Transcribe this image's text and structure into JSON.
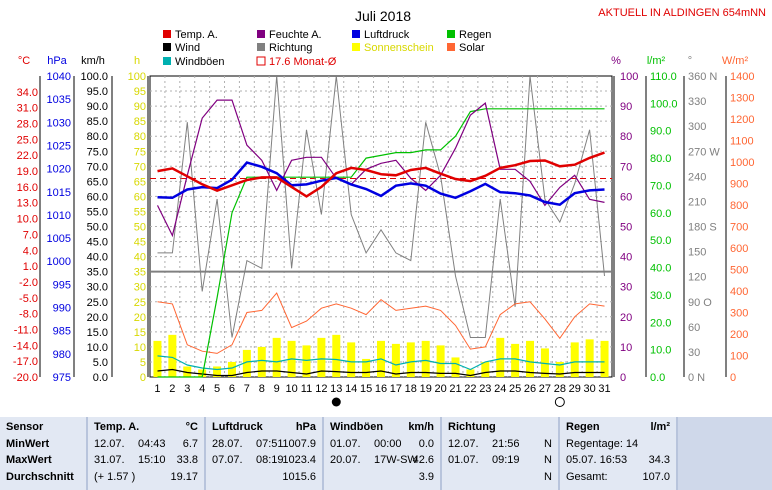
{
  "header": {
    "title": "Juli 2018",
    "station": "AKTUELL IN ALDINGEN 654mNN"
  },
  "legend": [
    {
      "label": "Temp. A.",
      "color": "#e00000",
      "style": "box"
    },
    {
      "label": "Feuchte A.",
      "color": "#800080",
      "style": "box"
    },
    {
      "label": "Luftdruck",
      "color": "#0000e0",
      "style": "box"
    },
    {
      "label": "Regen",
      "color": "#00c000",
      "style": "box"
    },
    {
      "label": "Wind",
      "color": "#000000",
      "style": "box"
    },
    {
      "label": "Richtung",
      "color": "#808080",
      "style": "box"
    },
    {
      "label": "Sonnenschein",
      "color": "#ffff00",
      "style": "box"
    },
    {
      "label": "Solar",
      "color": "#ff6633",
      "style": "box"
    },
    {
      "label": "Windböen",
      "color": "#00b0b0",
      "style": "box"
    },
    {
      "label": "17.6 Monat-Ø",
      "color": "#e00000",
      "style": "outline"
    }
  ],
  "axes": {
    "left_units": [
      "°C",
      "hPa",
      "km/h",
      "h"
    ],
    "right_units": [
      "%",
      "l/m²",
      "°",
      "W/m²"
    ],
    "temp_ticks": [
      "34.0",
      "31.0",
      "28.0",
      "25.0",
      "22.0",
      "19.0",
      "16.0",
      "13.0",
      "10.0",
      "7.0",
      "4.0",
      "1.0",
      "-2.0",
      "-5.0",
      "-8.0",
      "-11.0",
      "-14.0",
      "-17.0",
      "-20.0"
    ],
    "press_ticks": [
      "1040",
      "1035",
      "1030",
      "1025",
      "1020",
      "1015",
      "1010",
      "1005",
      "1000",
      "995",
      "990",
      "985",
      "980",
      "975"
    ],
    "wind_ticks": [
      "100.0",
      "95.0",
      "90.0",
      "85.0",
      "80.0",
      "75.0",
      "70.0",
      "65.0",
      "60.0",
      "55.0",
      "50.0",
      "45.0",
      "40.0",
      "35.0",
      "30.0",
      "25.0",
      "20.0",
      "15.0",
      "10.0",
      "5.0",
      "0.0"
    ],
    "sun_ticks": [
      "100",
      "95",
      "90",
      "85",
      "80",
      "75",
      "70",
      "65",
      "60",
      "55",
      "50",
      "45",
      "40",
      "35",
      "30",
      "25",
      "20",
      "15",
      "10",
      "5",
      "0"
    ],
    "hum_ticks": [
      "100",
      "90",
      "80",
      "70",
      "60",
      "50",
      "40",
      "30",
      "20",
      "10",
      "0"
    ],
    "rain_ticks": [
      "110.0",
      "100.0",
      "90.0",
      "80.0",
      "70.0",
      "60.0",
      "50.0",
      "40.0",
      "30.0",
      "20.0",
      "10.0",
      "0.0"
    ],
    "dir_ticks": [
      "360 N",
      "330",
      "300",
      "270 W",
      "240",
      "210",
      "180 S",
      "150",
      "120",
      "90 O",
      "60",
      "30",
      "0 N"
    ],
    "solar_ticks": [
      "1400",
      "1300",
      "1200",
      "1100",
      "1000",
      "900",
      "800",
      "700",
      "600",
      "500",
      "400",
      "300",
      "200",
      "100",
      "0"
    ],
    "x_ticks": [
      "1",
      "2",
      "3",
      "4",
      "5",
      "6",
      "7",
      "8",
      "9",
      "10",
      "11",
      "12",
      "13",
      "14",
      "15",
      "16",
      "17",
      "18",
      "19",
      "20",
      "21",
      "22",
      "23",
      "24",
      "25",
      "26",
      "27",
      "28",
      "29",
      "30",
      "31"
    ]
  },
  "chart_data": {
    "type": "line",
    "x": [
      1,
      2,
      3,
      4,
      5,
      6,
      7,
      8,
      9,
      10,
      11,
      12,
      13,
      14,
      15,
      16,
      17,
      18,
      19,
      20,
      21,
      22,
      23,
      24,
      25,
      26,
      27,
      28,
      29,
      30,
      31
    ],
    "month_avg_temp": 17.6,
    "series": [
      {
        "name": "Temp. A.",
        "unit": "°C",
        "color": "#e00000",
        "values": [
          19.0,
          19.5,
          18.0,
          16.5,
          15.3,
          16.3,
          17.3,
          17.8,
          17.8,
          16.0,
          14.2,
          16.0,
          18.6,
          19.6,
          19.2,
          18.4,
          18.2,
          19.2,
          19.6,
          18.5,
          17.5,
          17.1,
          18.1,
          19.6,
          20.1,
          20.9,
          21.0,
          19.9,
          20.2,
          21.5,
          22.5
        ]
      },
      {
        "name": "Feuchte A.",
        "unit": "%",
        "color": "#800080",
        "values": [
          57,
          47,
          67,
          86,
          92,
          92,
          77,
          72,
          62,
          72,
          73,
          73,
          66,
          64,
          69,
          71,
          72,
          66,
          62,
          67,
          76,
          87,
          91,
          69,
          69,
          65,
          57,
          63,
          67,
          59,
          58
        ]
      },
      {
        "name": "Luftdruck",
        "unit": "hPa",
        "color": "#0000e0",
        "values": [
          1013.8,
          1013.7,
          1015.5,
          1016.0,
          1015.8,
          1017.6,
          1021.3,
          1020.4,
          1019.0,
          1016.4,
          1016.6,
          1017.4,
          1018.0,
          1016.6,
          1015.6,
          1014.1,
          1016.3,
          1016.8,
          1016.3,
          1014.6,
          1013.7,
          1015.1,
          1016.7,
          1014.9,
          1014.7,
          1014.2,
          1012.8,
          1012.2,
          1014.7,
          1015.3,
          1015.5
        ]
      },
      {
        "name": "Regen",
        "unit": "l/m²",
        "color": "#00c000",
        "values": [
          0,
          0,
          0,
          0,
          29,
          60,
          73,
          73,
          73,
          73,
          73,
          73,
          73,
          73,
          80,
          81,
          82,
          82,
          83,
          83,
          88,
          97,
          98,
          98,
          98,
          98,
          98,
          98,
          98,
          98,
          98
        ]
      },
      {
        "name": "Wind",
        "unit": "km/h",
        "color": "#000000",
        "values": [
          2.0,
          2.5,
          1.5,
          1.0,
          0.5,
          0.5,
          1.5,
          2.0,
          2.0,
          1.5,
          1.0,
          2.0,
          1.8,
          1.5,
          1.5,
          2.0,
          1.0,
          1.5,
          1.5,
          1.2,
          1.2,
          0.5,
          1.5,
          2.0,
          2.0,
          1.5,
          1.2,
          1.0,
          1.5,
          1.5,
          1.5
        ]
      },
      {
        "name": "Windböen",
        "unit": "km/h",
        "color": "#00b0b0",
        "values": [
          7.0,
          6.5,
          4.0,
          3.0,
          2.5,
          3.0,
          5.0,
          5.5,
          5.0,
          6.0,
          5.5,
          6.0,
          5.8,
          5.0,
          5.0,
          6.0,
          4.0,
          5.0,
          5.5,
          4.5,
          4.5,
          2.5,
          5.0,
          6.0,
          6.0,
          5.0,
          4.5,
          4.0,
          5.0,
          5.0,
          5.0
        ]
      },
      {
        "name": "Richtung",
        "unit": "°",
        "color": "#808080",
        "values": [
          130,
          130,
          300,
          80,
          200,
          20,
          120,
          110,
          360,
          110,
          290,
          180,
          360,
          180,
          130,
          160,
          130,
          120,
          300,
          230,
          100,
          20,
          20,
          200,
          60,
          360,
          200,
          170,
          220,
          290,
          100
        ]
      },
      {
        "name": "Sonnenschein",
        "unit": "h",
        "color": "#ffff00",
        "values": [
          12.0,
          14.0,
          3.5,
          2.5,
          3.5,
          5.0,
          9.0,
          10.0,
          13.0,
          12.0,
          10.5,
          13.0,
          14.0,
          11.5,
          6.0,
          12.0,
          11.0,
          11.5,
          12.0,
          10.5,
          6.5,
          2.5,
          5.0,
          13.0,
          11.0,
          12.0,
          9.5,
          5.0,
          11.5,
          12.5,
          12.0
        ]
      },
      {
        "name": "Solar",
        "unit": "W/m²",
        "color": "#ff6633",
        "values": [
          350,
          340,
          150,
          120,
          110,
          150,
          300,
          310,
          390,
          230,
          260,
          320,
          340,
          320,
          290,
          360,
          310,
          320,
          330,
          310,
          240,
          130,
          140,
          290,
          340,
          350,
          270,
          180,
          280,
          340,
          330
        ]
      }
    ]
  },
  "markers": {
    "new_moon_day": 13,
    "full_moon_day": 28
  },
  "table": {
    "row_labels": [
      "Sensor",
      "MinWert",
      "MaxWert",
      "Durchschnitt"
    ],
    "columns": [
      {
        "title": "Temp. A.",
        "unit": "°C",
        "rows": [
          [
            "12.07.",
            "04:43",
            "6.7"
          ],
          [
            "31.07.",
            "15:10",
            "33.8"
          ],
          [
            "(+ 1.57 )",
            "",
            "19.17"
          ]
        ]
      },
      {
        "title": "Luftdruck",
        "unit": "hPa",
        "rows": [
          [
            "28.07.",
            "07:51",
            "1007.9"
          ],
          [
            "07.07.",
            "08:19",
            "1023.4"
          ],
          [
            "",
            "",
            "1015.6"
          ]
        ]
      },
      {
        "title": "Windböen",
        "unit": "km/h",
        "rows": [
          [
            "01.07.",
            "00:00",
            "0.0"
          ],
          [
            "20.07.",
            "17W-SW",
            "42.6"
          ],
          [
            "",
            "",
            "3.9"
          ]
        ]
      },
      {
        "title": "Richtung",
        "unit": "",
        "rows": [
          [
            "12.07.",
            "21:56",
            "N"
          ],
          [
            "01.07.",
            "09:19",
            "N"
          ],
          [
            "",
            "",
            "N"
          ]
        ]
      },
      {
        "title": "Regen",
        "unit": "l/m²",
        "rows": [
          [
            "Regentage: 14",
            ""
          ],
          [
            "05.07.   16:53",
            "34.3"
          ],
          [
            "Gesamt:",
            "107.0"
          ]
        ]
      }
    ]
  }
}
